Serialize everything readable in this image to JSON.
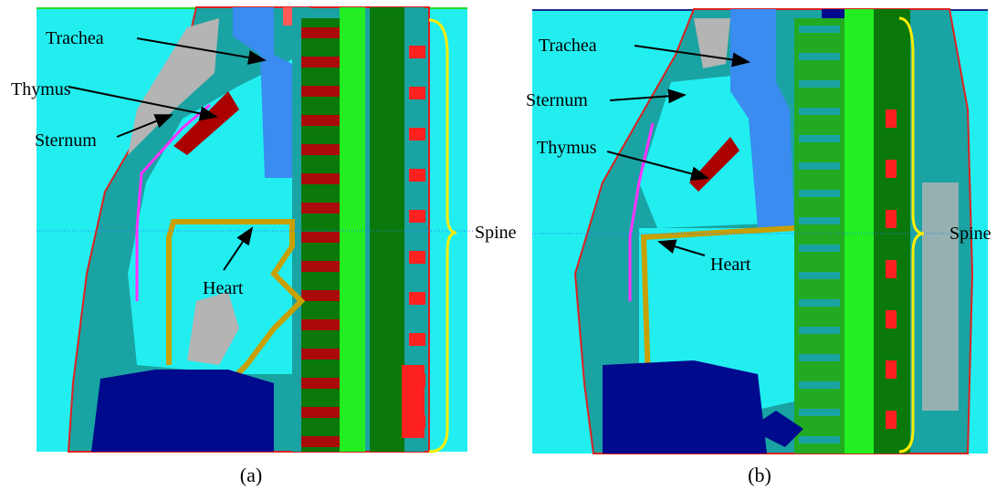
{
  "panels": [
    {
      "label": "(a)",
      "annotations": {
        "trachea": "Trachea",
        "thymus": "Thymus",
        "sternum": "Sternum",
        "heart": "Heart",
        "spine": "Spine"
      }
    },
    {
      "label": "(b)",
      "annotations": {
        "trachea": "Trachea",
        "sternum": "Sternum",
        "thymus": "Thymus",
        "heart": "Heart",
        "spine": "Spine"
      }
    }
  ]
}
